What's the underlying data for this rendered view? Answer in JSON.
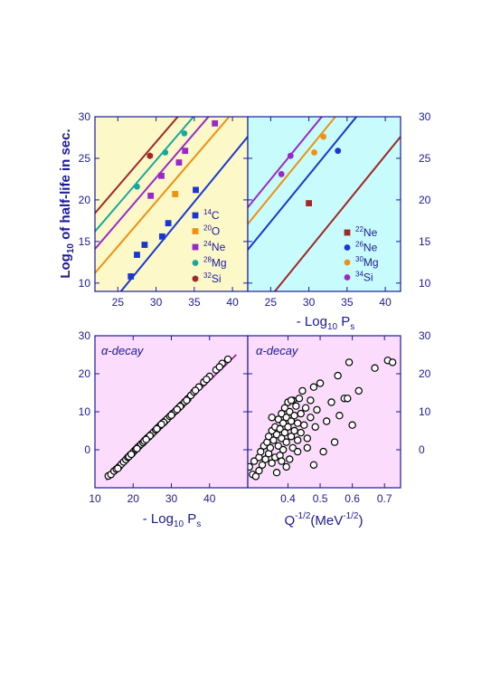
{
  "colors": {
    "yellow_bg": "#fdf8c8",
    "cyan_bg": "#c8fbfb",
    "pink_bg": "#fcdcfc",
    "axis": "#1a1aa0",
    "c14": "#1838d0",
    "o20": "#f09010",
    "ne24": "#9a28c8",
    "mg28": "#18a8a0",
    "si32": "#a02828"
  },
  "chart_data": [
    {
      "id": "top_left",
      "type": "scatter",
      "ylabel": "Log10 of half-life in sec.",
      "ylabel_parts": {
        "pre": "Log",
        "sub": "10",
        "post": " of half-life in sec."
      },
      "xlim": [
        22,
        42
      ],
      "ylim": [
        9,
        30
      ],
      "xticks": [
        25,
        30,
        35,
        40
      ],
      "yticks": [
        10,
        15,
        20,
        25,
        30
      ],
      "legend_position": "bottom-right",
      "series": [
        {
          "name": "14C",
          "mass": "14",
          "el": "C",
          "color_key": "c14",
          "marker": "square",
          "points": [
            [
              26.7,
              10.8
            ],
            [
              27.5,
              13.4
            ],
            [
              28.5,
              14.6
            ],
            [
              30.8,
              15.6
            ],
            [
              31.6,
              17.2
            ],
            [
              35.2,
              21.2
            ]
          ],
          "line": [
            [
              22,
              5.2
            ],
            [
              42,
              27.6
            ]
          ]
        },
        {
          "name": "20O",
          "mass": "20",
          "el": "O",
          "color_key": "o20",
          "marker": "square",
          "points": [
            [
              32.5,
              20.7
            ]
          ],
          "line": [
            [
              22,
              11.2
            ],
            [
              42,
              32.6
            ]
          ]
        },
        {
          "name": "24Ne",
          "mass": "24",
          "el": "Ne",
          "color_key": "ne24",
          "marker": "square",
          "points": [
            [
              29.3,
              20.5
            ],
            [
              30.7,
              22.9
            ],
            [
              33.0,
              24.5
            ],
            [
              33.8,
              25.9
            ],
            [
              37.7,
              29.2
            ]
          ],
          "line": [
            [
              22,
              14.1
            ],
            [
              42,
              35.5
            ]
          ]
        },
        {
          "name": "28Mg",
          "mass": "28",
          "el": "Mg",
          "color_key": "mg28",
          "marker": "circle",
          "points": [
            [
              27.5,
              21.6
            ],
            [
              31.2,
              25.7
            ],
            [
              33.7,
              28.0
            ]
          ],
          "line": [
            [
              22,
              16.2
            ],
            [
              42,
              37.6
            ]
          ]
        },
        {
          "name": "32Si",
          "mass": "32",
          "el": "Si",
          "color_key": "si32",
          "marker": "hexagon",
          "points": [
            [
              29.2,
              25.3
            ]
          ],
          "line": [
            [
              22,
              18.4
            ],
            [
              42,
              39.8
            ]
          ]
        }
      ]
    },
    {
      "id": "top_right",
      "type": "scatter",
      "xlabel": "- Log10 Ps",
      "xlabel_parts": {
        "pre": "- Log",
        "sub1": "10",
        "mid": " P",
        "sub2": "s"
      },
      "xlim": [
        22,
        42
      ],
      "ylim": [
        9,
        30
      ],
      "xticks": [
        25,
        30,
        35,
        40
      ],
      "yticks": [
        10,
        15,
        20,
        25,
        30
      ],
      "legend_position": "bottom-right",
      "series": [
        {
          "name": "22Ne",
          "mass": "22",
          "el": "Ne",
          "color_key": "si32",
          "marker": "square",
          "points": [
            [
              30.0,
              19.6
            ]
          ],
          "line": [
            [
              22,
              5.0
            ],
            [
              42,
              27.6
            ]
          ]
        },
        {
          "name": "26Ne",
          "mass": "26",
          "el": "Ne",
          "color_key": "c14",
          "marker": "circle",
          "points": [
            [
              33.8,
              25.9
            ]
          ],
          "line": [
            [
              22,
              14.0
            ],
            [
              42,
              36.5
            ]
          ]
        },
        {
          "name": "30Mg",
          "mass": "30",
          "el": "Mg",
          "color_key": "o20",
          "marker": "circle",
          "points": [
            [
              30.7,
              25.7
            ],
            [
              31.9,
              27.6
            ]
          ],
          "line": [
            [
              22,
              17.1
            ],
            [
              42,
              39.6
            ]
          ]
        },
        {
          "name": "34Si",
          "mass": "34",
          "el": "Si",
          "color_key": "ne24",
          "marker": "circle",
          "points": [
            [
              26.4,
              23.1
            ],
            [
              27.6,
              25.3
            ]
          ],
          "line": [
            [
              22,
              19.1
            ],
            [
              42,
              41.6
            ]
          ]
        }
      ]
    },
    {
      "id": "bottom_left",
      "type": "scatter",
      "annotation": "α-decay",
      "xlabel": "- Log10 Ps",
      "xlabel_parts": {
        "pre": "- Log",
        "sub1": "10",
        "mid": " P",
        "sub2": "s"
      },
      "xlim": [
        10,
        50
      ],
      "ylim": [
        -10,
        30
      ],
      "xticks": [
        10,
        20,
        30,
        40
      ],
      "yticks": [
        0,
        10,
        20,
        30
      ],
      "line": [
        [
          13,
          -8.0
        ],
        [
          47,
          25.0
        ]
      ],
      "points": [
        [
          13.5,
          -6.9
        ],
        [
          14.2,
          -6.5
        ],
        [
          15.0,
          -5.6
        ],
        [
          15.6,
          -5.1
        ],
        [
          16.3,
          -4.5
        ],
        [
          16.9,
          -3.8
        ],
        [
          17.5,
          -3.2
        ],
        [
          18.1,
          -2.6
        ],
        [
          18.6,
          -2.0
        ],
        [
          19.2,
          -1.4
        ],
        [
          19.7,
          -1.0
        ],
        [
          20.2,
          -0.4
        ],
        [
          20.7,
          0.1
        ],
        [
          21.2,
          0.6
        ],
        [
          21.6,
          1.0
        ],
        [
          22.1,
          1.5
        ],
        [
          22.6,
          1.9
        ],
        [
          23.1,
          2.5
        ],
        [
          23.6,
          3.0
        ],
        [
          24.1,
          3.4
        ],
        [
          24.7,
          4.0
        ],
        [
          25.3,
          4.6
        ],
        [
          25.9,
          5.2
        ],
        [
          26.5,
          5.8
        ],
        [
          27.1,
          6.4
        ],
        [
          27.7,
          7.0
        ],
        [
          28.3,
          7.5
        ],
        [
          28.9,
          8.1
        ],
        [
          29.6,
          8.8
        ],
        [
          30.3,
          9.5
        ],
        [
          31.1,
          10.2
        ],
        [
          31.9,
          11.0
        ],
        [
          32.7,
          11.8
        ],
        [
          33.5,
          12.6
        ],
        [
          34.3,
          13.4
        ],
        [
          35.1,
          14.3
        ],
        [
          35.9,
          15.2
        ],
        [
          37.2,
          16.5
        ],
        [
          38.5,
          17.8
        ],
        [
          40.0,
          19.3
        ],
        [
          41.7,
          21.0
        ],
        [
          43.3,
          22.7
        ],
        [
          44.8,
          23.8
        ],
        [
          16.0,
          -4.9
        ],
        [
          18.9,
          -1.8
        ],
        [
          21.0,
          0.3
        ],
        [
          22.9,
          2.3
        ],
        [
          24.4,
          3.7
        ],
        [
          26.2,
          5.5
        ],
        [
          28.0,
          7.2
        ],
        [
          30.0,
          9.1
        ],
        [
          32.3,
          11.4
        ],
        [
          34.0,
          13.0
        ],
        [
          36.3,
          15.6
        ],
        [
          39.2,
          18.5
        ],
        [
          42.6,
          21.8
        ],
        [
          19.5,
          -1.2
        ],
        [
          23.4,
          2.7
        ],
        [
          27.4,
          6.7
        ],
        [
          31.5,
          10.6
        ]
      ]
    },
    {
      "id": "bottom_right",
      "type": "scatter",
      "annotation": "α-decay",
      "xlabel": "Q-1/2(MeV-1/2)",
      "xlabel_parts": {
        "pre": "Q",
        "sup1": "-1/2",
        "mid": "(MeV",
        "sup2": "-1/2",
        "post": ")"
      },
      "xlim": [
        0.275,
        0.75
      ],
      "ylim": [
        -10,
        30
      ],
      "xticks": [
        0.4,
        0.5,
        0.6,
        0.7
      ],
      "yticks": [
        0,
        10,
        20,
        30
      ],
      "points": [
        [
          0.28,
          -4.5
        ],
        [
          0.29,
          -6.5
        ],
        [
          0.295,
          -3.0
        ],
        [
          0.3,
          -7.0
        ],
        [
          0.31,
          -5.5
        ],
        [
          0.31,
          -2.0
        ],
        [
          0.315,
          -0.5
        ],
        [
          0.32,
          -4.0
        ],
        [
          0.325,
          1.0
        ],
        [
          0.33,
          -2.5
        ],
        [
          0.335,
          2.0
        ],
        [
          0.34,
          -1.0
        ],
        [
          0.34,
          3.5
        ],
        [
          0.345,
          0.5
        ],
        [
          0.35,
          5.0
        ],
        [
          0.35,
          -3.5
        ],
        [
          0.355,
          2.5
        ],
        [
          0.36,
          -2.0
        ],
        [
          0.36,
          6.0
        ],
        [
          0.365,
          4.0
        ],
        [
          0.37,
          1.0
        ],
        [
          0.37,
          8.0
        ],
        [
          0.375,
          -1.5
        ],
        [
          0.375,
          5.5
        ],
        [
          0.38,
          3.0
        ],
        [
          0.38,
          9.5
        ],
        [
          0.385,
          0.0
        ],
        [
          0.385,
          7.0
        ],
        [
          0.39,
          11.0
        ],
        [
          0.39,
          4.5
        ],
        [
          0.395,
          2.0
        ],
        [
          0.395,
          8.5
        ],
        [
          0.4,
          12.5
        ],
        [
          0.4,
          6.0
        ],
        [
          0.405,
          -2.5
        ],
        [
          0.405,
          10.0
        ],
        [
          0.41,
          3.5
        ],
        [
          0.41,
          7.5
        ],
        [
          0.415,
          13.0
        ],
        [
          0.415,
          0.5
        ],
        [
          0.42,
          9.0
        ],
        [
          0.42,
          5.0
        ],
        [
          0.425,
          11.5
        ],
        [
          0.43,
          2.5
        ],
        [
          0.43,
          7.0
        ],
        [
          0.435,
          13.5
        ],
        [
          0.44,
          9.5
        ],
        [
          0.44,
          4.5
        ],
        [
          0.445,
          15.5
        ],
        [
          0.45,
          6.5
        ],
        [
          0.455,
          11.0
        ],
        [
          0.46,
          3.0
        ],
        [
          0.47,
          8.5
        ],
        [
          0.47,
          13.0
        ],
        [
          0.48,
          -4.0
        ],
        [
          0.48,
          16.5
        ],
        [
          0.485,
          6.0
        ],
        [
          0.49,
          10.5
        ],
        [
          0.5,
          17.5
        ],
        [
          0.51,
          -0.5
        ],
        [
          0.52,
          7.5
        ],
        [
          0.535,
          12.5
        ],
        [
          0.545,
          2.0
        ],
        [
          0.555,
          19.5
        ],
        [
          0.56,
          9.0
        ],
        [
          0.575,
          13.5
        ],
        [
          0.585,
          13.5
        ],
        [
          0.59,
          23.0
        ],
        [
          0.6,
          6.5
        ],
        [
          0.62,
          15.5
        ],
        [
          0.67,
          21.5
        ],
        [
          0.71,
          23.5
        ],
        [
          0.725,
          23.0
        ],
        [
          0.365,
          -6.0
        ],
        [
          0.395,
          -4.5
        ],
        [
          0.43,
          -0.5
        ],
        [
          0.46,
          0.5
        ],
        [
          0.35,
          8.5
        ],
        [
          0.38,
          -3.0
        ],
        [
          0.41,
          13.0
        ]
      ]
    }
  ]
}
